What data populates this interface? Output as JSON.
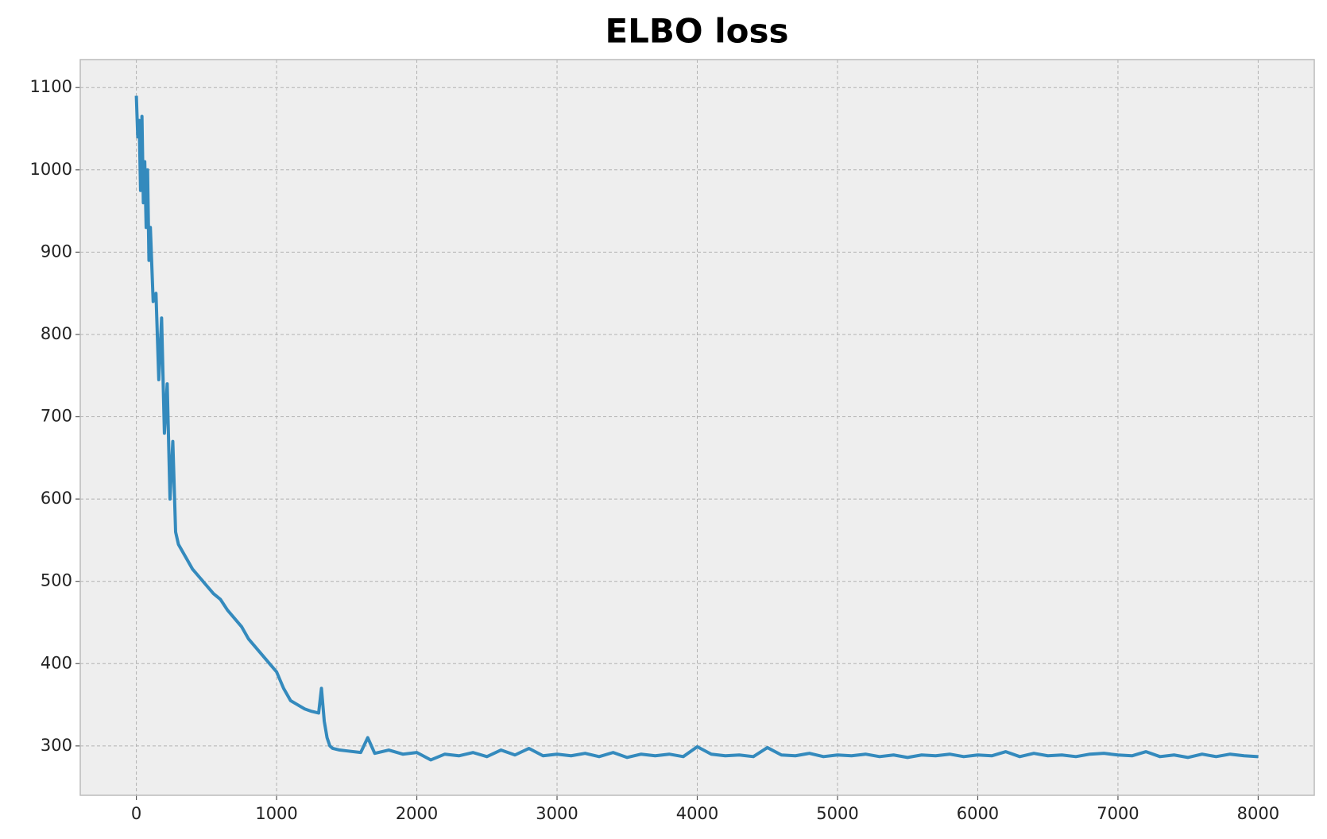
{
  "chart_data": {
    "type": "line",
    "title": "ELBO loss",
    "x": [
      0,
      10,
      20,
      30,
      40,
      50,
      60,
      70,
      80,
      90,
      100,
      120,
      140,
      160,
      180,
      200,
      220,
      240,
      260,
      280,
      300,
      350,
      400,
      450,
      500,
      550,
      600,
      650,
      700,
      750,
      800,
      850,
      900,
      950,
      1000,
      1050,
      1100,
      1150,
      1200,
      1250,
      1300,
      1320,
      1340,
      1360,
      1380,
      1400,
      1450,
      1500,
      1600,
      1650,
      1700,
      1800,
      1900,
      2000,
      2100,
      2200,
      2300,
      2400,
      2500,
      2600,
      2700,
      2800,
      2900,
      3000,
      3100,
      3200,
      3300,
      3400,
      3500,
      3600,
      3700,
      3800,
      3900,
      4000,
      4100,
      4200,
      4300,
      4400,
      4500,
      4600,
      4700,
      4800,
      4900,
      5000,
      5100,
      5200,
      5300,
      5400,
      5500,
      5600,
      5700,
      5800,
      5900,
      6000,
      6100,
      6200,
      6300,
      6400,
      6500,
      6600,
      6700,
      6800,
      6900,
      7000,
      7100,
      7200,
      7300,
      7400,
      7500,
      7600,
      7700,
      7800,
      7900,
      8000
    ],
    "values": [
      1090,
      1040,
      1060,
      975,
      1065,
      960,
      1010,
      930,
      1000,
      890,
      930,
      840,
      850,
      745,
      820,
      680,
      740,
      600,
      670,
      560,
      545,
      530,
      515,
      505,
      495,
      485,
      478,
      465,
      455,
      445,
      430,
      420,
      410,
      400,
      390,
      370,
      355,
      350,
      345,
      342,
      340,
      370,
      330,
      310,
      300,
      297,
      295,
      294,
      292,
      310,
      291,
      295,
      290,
      292,
      283,
      290,
      288,
      292,
      287,
      295,
      289,
      297,
      288,
      290,
      288,
      291,
      287,
      292,
      286,
      290,
      288,
      290,
      287,
      299,
      290,
      288,
      289,
      287,
      298,
      289,
      288,
      291,
      287,
      289,
      288,
      290,
      287,
      289,
      286,
      289,
      288,
      290,
      287,
      289,
      288,
      293,
      287,
      291,
      288,
      289,
      287,
      290,
      291,
      289,
      288,
      293,
      287,
      289,
      286,
      290,
      287,
      290,
      288,
      287
    ],
    "color": "#348abd",
    "xlim": [
      -400,
      8400
    ],
    "ylim": [
      240,
      1134
    ],
    "xticks": [
      0,
      1000,
      2000,
      3000,
      4000,
      5000,
      6000,
      7000,
      8000
    ],
    "yticks": [
      300,
      400,
      500,
      600,
      700,
      800,
      900,
      1000,
      1100
    ],
    "grid": true
  }
}
